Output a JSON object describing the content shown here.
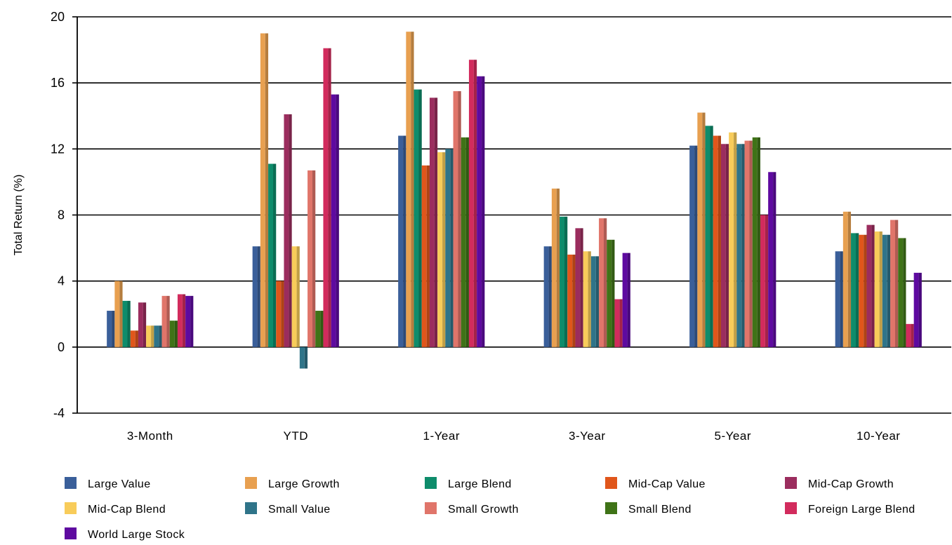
{
  "chart_data": {
    "type": "bar",
    "title": "",
    "xlabel": "",
    "ylabel": "Total Return (%)",
    "ylim": [
      -4,
      20
    ],
    "yticks": [
      -4,
      0,
      4,
      8,
      12,
      16,
      20
    ],
    "grid": true,
    "legend_position": "bottom",
    "categories": [
      "3-Month",
      "YTD",
      "1-Year",
      "3-Year",
      "5-Year",
      "10-Year"
    ],
    "series": [
      {
        "name": "Large Value",
        "color": "#3a5f9a",
        "values": [
          2.2,
          6.1,
          12.8,
          6.1,
          12.2,
          5.8
        ]
      },
      {
        "name": "Large Growth",
        "color": "#e8a050",
        "values": [
          4.0,
          19.0,
          19.1,
          9.6,
          14.2,
          8.2
        ]
      },
      {
        "name": "Large Blend",
        "color": "#0e8c6b",
        "values": [
          2.8,
          11.1,
          15.6,
          7.9,
          13.4,
          6.9
        ]
      },
      {
        "name": "Mid-Cap Value",
        "color": "#e0561b",
        "values": [
          1.0,
          4.0,
          11.0,
          5.6,
          12.8,
          6.8
        ]
      },
      {
        "name": "Mid-Cap Growth",
        "color": "#9b2d5e",
        "values": [
          2.7,
          14.1,
          15.1,
          7.2,
          12.3,
          7.4
        ]
      },
      {
        "name": "Mid-Cap Blend",
        "color": "#f8cc5a",
        "values": [
          1.3,
          6.1,
          11.8,
          5.8,
          13.0,
          7.0
        ]
      },
      {
        "name": "Small Value",
        "color": "#2f7489",
        "values": [
          1.3,
          -1.3,
          12.0,
          5.5,
          12.3,
          6.8
        ]
      },
      {
        "name": "Small Growth",
        "color": "#e0756a",
        "values": [
          3.1,
          10.7,
          15.5,
          7.8,
          12.5,
          7.7
        ]
      },
      {
        "name": "Small Blend",
        "color": "#3f7317",
        "values": [
          1.6,
          2.2,
          12.7,
          6.5,
          12.7,
          6.6
        ]
      },
      {
        "name": "Foreign Large Blend",
        "color": "#d22b5d",
        "values": [
          3.2,
          18.1,
          17.4,
          2.9,
          8.0,
          1.4
        ]
      },
      {
        "name": "World Large Stock",
        "color": "#5e0aa0",
        "values": [
          3.1,
          15.3,
          16.4,
          5.7,
          10.6,
          4.5
        ]
      }
    ]
  }
}
